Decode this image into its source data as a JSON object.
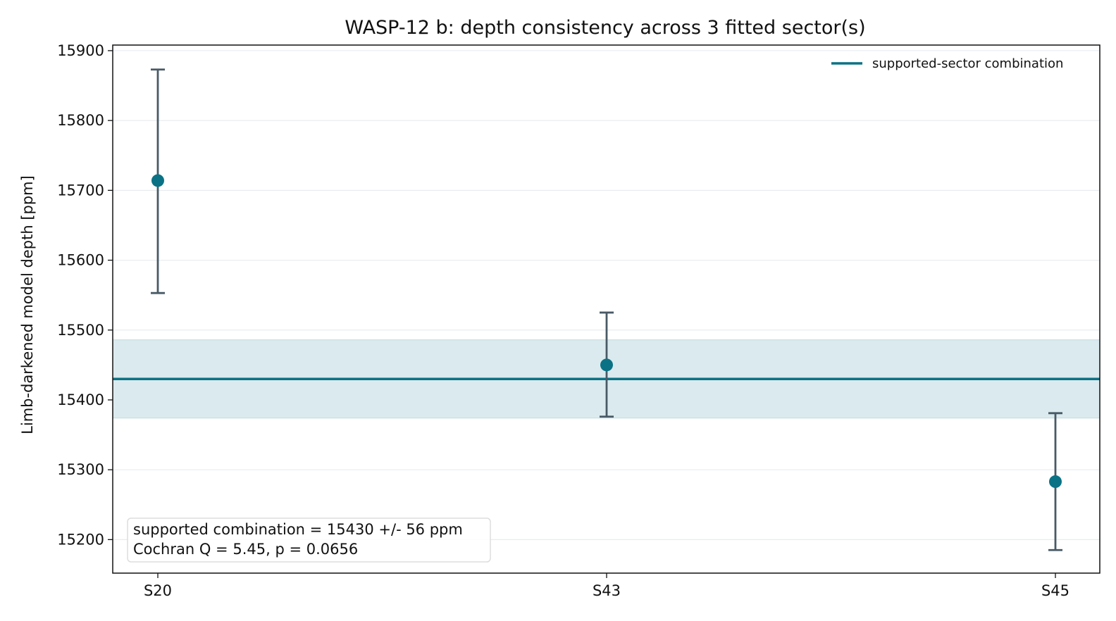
{
  "chart_data": {
    "type": "scatter",
    "title": "WASP-12 b: depth consistency across 3 fitted sector(s)",
    "xlabel": "",
    "ylabel": "Limb-darkened model depth [ppm]",
    "categories": [
      "S20",
      "S43",
      "S45"
    ],
    "series": [
      {
        "values": [
          15714,
          15450,
          15283
        ],
        "err_low": [
          15553,
          15376,
          15185
        ],
        "err_high": [
          15873,
          15525,
          15381
        ]
      }
    ],
    "combination": {
      "label": "supported-sector combination",
      "value": 15430,
      "band_low": 15374,
      "band_high": 15486
    },
    "y_ticks": [
      15200,
      15300,
      15400,
      15500,
      15600,
      15700,
      15800,
      15900
    ],
    "ylim": [
      15152,
      15908
    ],
    "grid": "horizontal",
    "legend_position": "top-right",
    "annotation": [
      "supported combination = 15430 +/- 56 ppm",
      "Cochran Q = 5.45, p = 0.0656"
    ],
    "colors": {
      "point": "#0b7285",
      "errorbar": "#495a66",
      "line": "#0b7285",
      "band": "#dbeaee",
      "grid": "#e8ecef"
    }
  }
}
